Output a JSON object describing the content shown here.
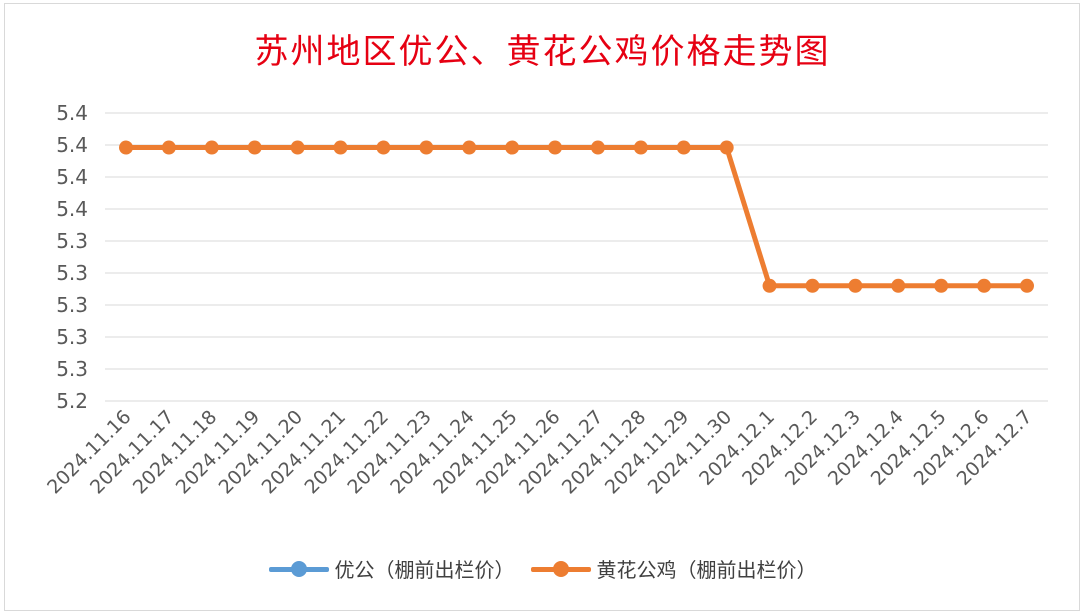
{
  "chart_data": {
    "type": "line",
    "title": "苏州地区优公、黄花公鸡价格走势图",
    "categories": [
      "2024.11.16",
      "2024.11.17",
      "2024.11.18",
      "2024.11.19",
      "2024.11.20",
      "2024.11.21",
      "2024.11.22",
      "2024.11.23",
      "2024.11.24",
      "2024.11.25",
      "2024.11.26",
      "2024.11.27",
      "2024.11.28",
      "2024.11.29",
      "2024.11.30",
      "2024.12.1",
      "2024.12.2",
      "2024.12.3",
      "2024.12.4",
      "2024.12.5",
      "2024.12.6",
      "2024.12.7"
    ],
    "yticks": [
      "5.4",
      "5.4",
      "5.4",
      "5.4",
      "5.3",
      "5.3",
      "5.3",
      "5.3",
      "5.3",
      "5.2"
    ],
    "ylim": [
      5.2,
      5.45
    ],
    "grid": true,
    "legend_position": "bottom",
    "series": [
      {
        "name": "优公（棚前出栏价）",
        "color": "#5b9bd5",
        "values": [
          null,
          null,
          null,
          null,
          null,
          null,
          null,
          null,
          null,
          null,
          null,
          null,
          null,
          null,
          null,
          null,
          null,
          null,
          null,
          null,
          null,
          null
        ]
      },
      {
        "name": "黄花公鸡（棚前出栏价）",
        "color": "#ed7d31",
        "values": [
          5.42,
          5.42,
          5.42,
          5.42,
          5.42,
          5.42,
          5.42,
          5.42,
          5.42,
          5.42,
          5.42,
          5.42,
          5.42,
          5.42,
          5.42,
          5.3,
          5.3,
          5.3,
          5.3,
          5.3,
          5.3,
          5.3
        ]
      }
    ]
  }
}
